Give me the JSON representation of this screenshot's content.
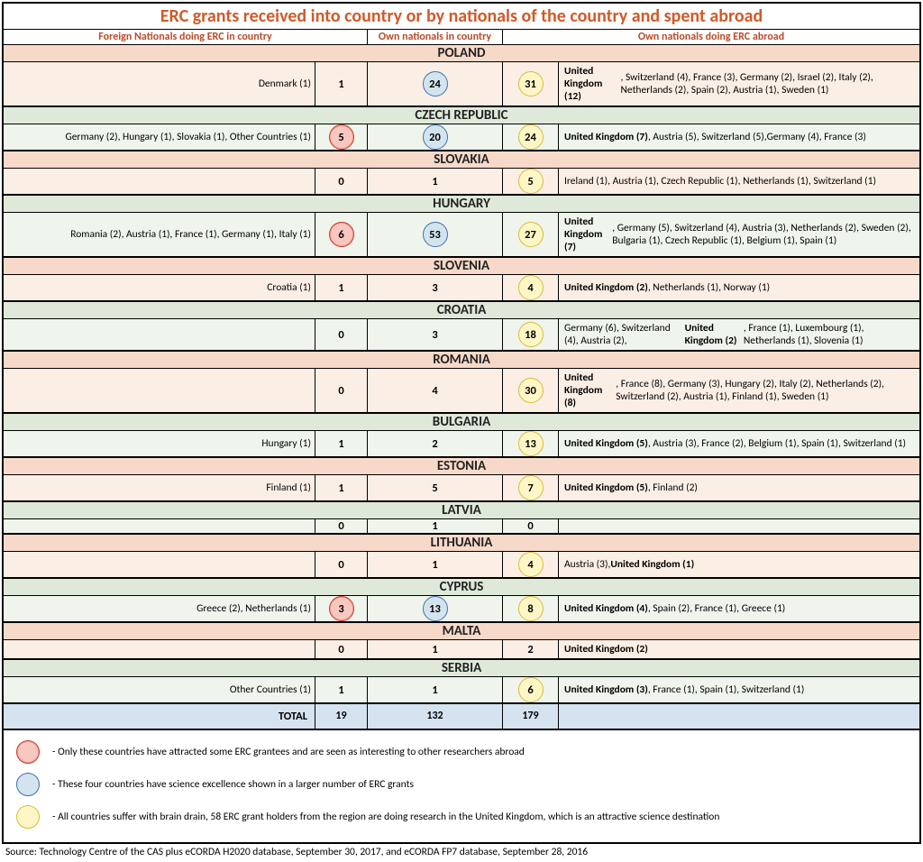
{
  "title": "ERC grants received into country or by nationals of the country and spent abroad",
  "headers": {
    "col1": "Foreign Nationals doing ERC in country",
    "col2": "Own nationals in country",
    "col3": "Own nationals doing ERC abroad"
  },
  "colors": {
    "peach_header": "#f7d9c9",
    "peach_row": "#fbeee5",
    "green_header": "#dfe9d9",
    "green_row": "#eff4ec",
    "total_row": "#d5e2ef",
    "title_color": "#d05a2a",
    "red_circle_fill": "#f8c8c0",
    "red_circle_border": "#cc3b2a",
    "blue_circle_fill": "#d3e4ef",
    "blue_circle_border": "#3f72af",
    "yellow_circle_fill": "#fdf6c7",
    "yellow_circle_border": "#d9bd3a"
  },
  "countries": [
    {
      "name": "POLAND",
      "theme": "peach",
      "foreign_text": "Denmark (1)",
      "foreign_n": "1",
      "foreign_circ": "",
      "own_n": "24",
      "own_circ": "blue",
      "abroad_n": "31",
      "abroad_circ": "yellow",
      "abroad_html": "<strong>United Kingdom (12)</strong>, Switzerland (4), France (3), Germany (2), Israel (2), Italy (2), Netherlands (2), Spain (2), Austria (1), Sweden (1)"
    },
    {
      "name": "CZECH REPUBLIC",
      "theme": "green",
      "foreign_text": "Germany (2), Hungary (1), Slovakia (1), Other Countries (1)",
      "foreign_n": "5",
      "foreign_circ": "red",
      "own_n": "20",
      "own_circ": "blue",
      "abroad_n": "24",
      "abroad_circ": "yellow",
      "abroad_html": "<strong>United Kingdom (7)</strong>, Austria (5), Switzerland (5),Germany (4), France (3)"
    },
    {
      "name": "SLOVAKIA",
      "theme": "peach",
      "foreign_text": "",
      "foreign_n": "0",
      "foreign_circ": "",
      "own_n": "1",
      "own_circ": "",
      "abroad_n": "5",
      "abroad_circ": "yellow",
      "abroad_html": "Ireland (1), Austria (1), Czech Republic (1), Netherlands (1), Switzerland (1)"
    },
    {
      "name": "HUNGARY",
      "theme": "green",
      "foreign_text": "Romania (2), Austria (1), France (1), Germany (1), Italy (1)",
      "foreign_n": "6",
      "foreign_circ": "red",
      "own_n": "53",
      "own_circ": "blue",
      "abroad_n": "27",
      "abroad_circ": "yellow",
      "abroad_html": "<strong>United Kingdom (7)</strong>, Germany (5), Switzerland (4), Austria (3), Netherlands (2), Sweden (2), Bulgaria (1), Czech Republic (1), Belgium (1), Spain (1)"
    },
    {
      "name": "SLOVENIA",
      "theme": "peach",
      "foreign_text": "Croatia (1)",
      "foreign_n": "1",
      "foreign_circ": "",
      "own_n": "3",
      "own_circ": "",
      "abroad_n": "4",
      "abroad_circ": "yellow",
      "abroad_html": "<strong>United Kingdom (2)</strong>, Netherlands (1), Norway (1)"
    },
    {
      "name": "CROATIA",
      "theme": "green",
      "foreign_text": "",
      "foreign_n": "0",
      "foreign_circ": "",
      "own_n": "3",
      "own_circ": "",
      "abroad_n": "18",
      "abroad_circ": "yellow",
      "abroad_html": "Germany (6), Switzerland (4), Austria (2), <strong>United Kingdom (2)</strong>, France (1), Luxembourg (1), Netherlands (1), Slovenia (1)"
    },
    {
      "name": "ROMANIA",
      "theme": "peach",
      "foreign_text": "",
      "foreign_n": "0",
      "foreign_circ": "",
      "own_n": "4",
      "own_circ": "",
      "abroad_n": "30",
      "abroad_circ": "yellow",
      "abroad_html": "<strong>United Kingdom (8)</strong>, France (8), Germany (3), Hungary (2), Italy (2), Netherlands (2), Switzerland (2), Austria (1), Finland (1), Sweden (1)"
    },
    {
      "name": "BULGARIA",
      "theme": "green",
      "foreign_text": "Hungary (1)",
      "foreign_n": "1",
      "foreign_circ": "",
      "own_n": "2",
      "own_circ": "",
      "abroad_n": "13",
      "abroad_circ": "yellow",
      "abroad_html": "<strong>United Kingdom (5)</strong>, Austria (3), France (2), Belgium (1), Spain (1), Switzerland (1)"
    },
    {
      "name": "ESTONIA",
      "theme": "peach",
      "foreign_text": "Finland (1)",
      "foreign_n": "1",
      "foreign_circ": "",
      "own_n": "5",
      "own_circ": "",
      "abroad_n": "7",
      "abroad_circ": "yellow",
      "abroad_html": "<strong>United Kingdom (5)</strong>, Finland (2)"
    },
    {
      "name": "LATVIA",
      "theme": "green",
      "foreign_text": "",
      "foreign_n": "0",
      "foreign_circ": "",
      "own_n": "1",
      "own_circ": "",
      "abroad_n": "0",
      "abroad_circ": "",
      "abroad_html": ""
    },
    {
      "name": "LITHUANIA",
      "theme": "peach",
      "foreign_text": "",
      "foreign_n": "0",
      "foreign_circ": "",
      "own_n": "1",
      "own_circ": "",
      "abroad_n": "4",
      "abroad_circ": "yellow",
      "abroad_html": "Austria (3), <strong>United Kingdom (1)</strong>"
    },
    {
      "name": "CYPRUS",
      "theme": "green",
      "foreign_text": "Greece (2), Netherlands (1)",
      "foreign_n": "3",
      "foreign_circ": "red",
      "own_n": "13",
      "own_circ": "blue",
      "abroad_n": "8",
      "abroad_circ": "yellow",
      "abroad_html": "<strong>United Kingdom (4)</strong>, Spain (2), France (1), Greece (1)"
    },
    {
      "name": "MALTA",
      "theme": "peach",
      "foreign_text": "",
      "foreign_n": "0",
      "foreign_circ": "",
      "own_n": "1",
      "own_circ": "",
      "abroad_n": "2",
      "abroad_circ": "",
      "abroad_html": "<strong>United Kingdom (2)</strong>"
    },
    {
      "name": "SERBIA",
      "theme": "green",
      "foreign_text": "Other Countries (1)",
      "foreign_n": "1",
      "foreign_circ": "",
      "own_n": "1",
      "own_circ": "",
      "abroad_n": "6",
      "abroad_circ": "yellow",
      "abroad_html": "<strong>United Kingdom (3)</strong>, France (1), Spain (1), Switzerland (1)"
    }
  ],
  "total": {
    "label": "TOTAL",
    "foreign": "19",
    "own": "132",
    "abroad": "179"
  },
  "legend": {
    "red": "- Only these countries have attracted some ERC grantees and are seen as interesting to other researchers abroad",
    "blue": "- These four countries have science excellence shown in a larger number of ERC grants",
    "yellow": "- All countries suffer with brain drain, 58 ERC grant holders from the region are doing research in the United Kingdom, which is an attractive science destination"
  },
  "source": "Source: Technology Centre of the CAS plus eCORDA H2020 database, September 30, 2017, and eCORDA FP7 database, September 28, 2016"
}
